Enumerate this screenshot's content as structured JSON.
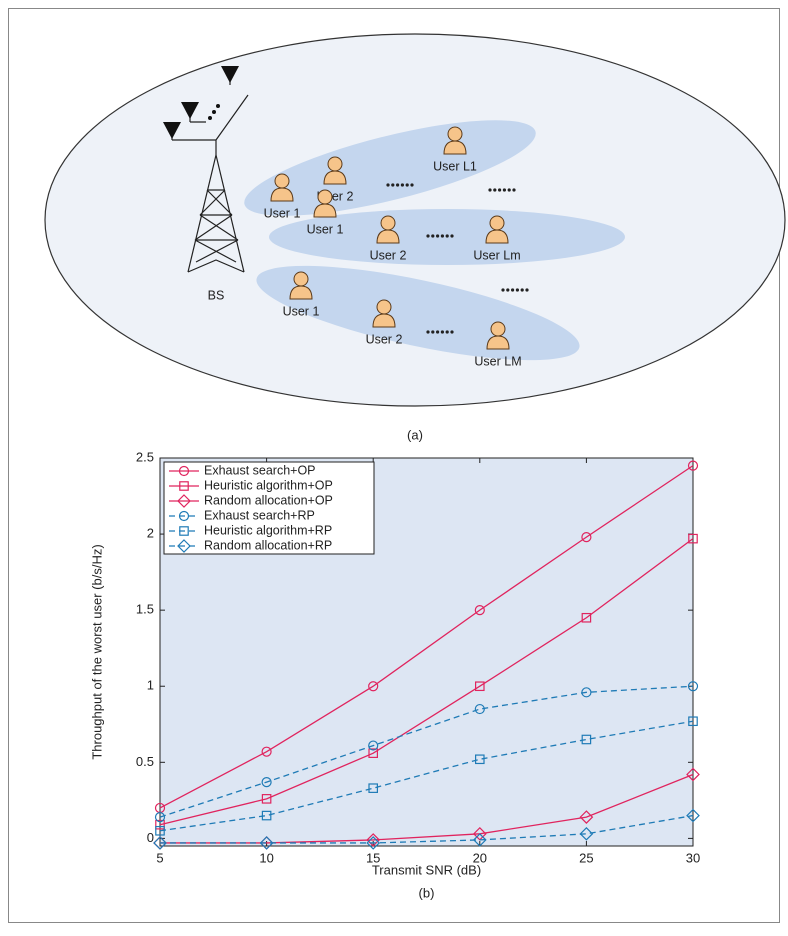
{
  "diagram": {
    "caption": "(a)",
    "bs_label": "BS",
    "users": [
      "User 1",
      "User 2",
      "User L1",
      "User 1",
      "User 2",
      "User Lm",
      "User 1",
      "User 2",
      "User LM"
    ]
  },
  "chart_data": {
    "type": "line",
    "caption": "(b)",
    "xlabel": "Transmit SNR (dB)",
    "ylabel": "Throughput of the worst user (b/s/Hz)",
    "x": [
      5,
      10,
      15,
      20,
      25,
      30
    ],
    "xlim": [
      5,
      30
    ],
    "xticks": [
      5,
      10,
      15,
      20,
      25,
      30
    ],
    "ylim": [
      -0.05,
      2.5
    ],
    "yticks": [
      0,
      0.5,
      1,
      1.5,
      2,
      2.5
    ],
    "legend": "upper-left",
    "background": "#dde6f3",
    "series": [
      {
        "name": "Exhaust search+OP",
        "color": "#e0245e",
        "marker": "circle",
        "dashed": false,
        "values": [
          0.2,
          0.57,
          1.0,
          1.5,
          1.98,
          2.45
        ]
      },
      {
        "name": "Heuristic algorithm+OP",
        "color": "#e0245e",
        "marker": "square",
        "dashed": false,
        "values": [
          0.09,
          0.26,
          0.56,
          1.0,
          1.45,
          1.97
        ]
      },
      {
        "name": "Random allocation+OP",
        "color": "#e0245e",
        "marker": "diamond",
        "dashed": false,
        "values": [
          -0.03,
          -0.03,
          -0.01,
          0.03,
          0.14,
          0.42
        ]
      },
      {
        "name": "Exhaust search+RP",
        "color": "#1f7bb6",
        "marker": "circle",
        "dashed": true,
        "values": [
          0.14,
          0.37,
          0.61,
          0.85,
          0.96,
          1.0
        ]
      },
      {
        "name": "Heuristic algorithm+RP",
        "color": "#1f7bb6",
        "marker": "square",
        "dashed": true,
        "values": [
          0.05,
          0.15,
          0.33,
          0.52,
          0.65,
          0.77
        ]
      },
      {
        "name": "Random allocation+RP",
        "color": "#1f7bb6",
        "marker": "diamond",
        "dashed": true,
        "values": [
          -0.03,
          -0.03,
          -0.03,
          -0.01,
          0.03,
          0.15
        ]
      }
    ]
  }
}
